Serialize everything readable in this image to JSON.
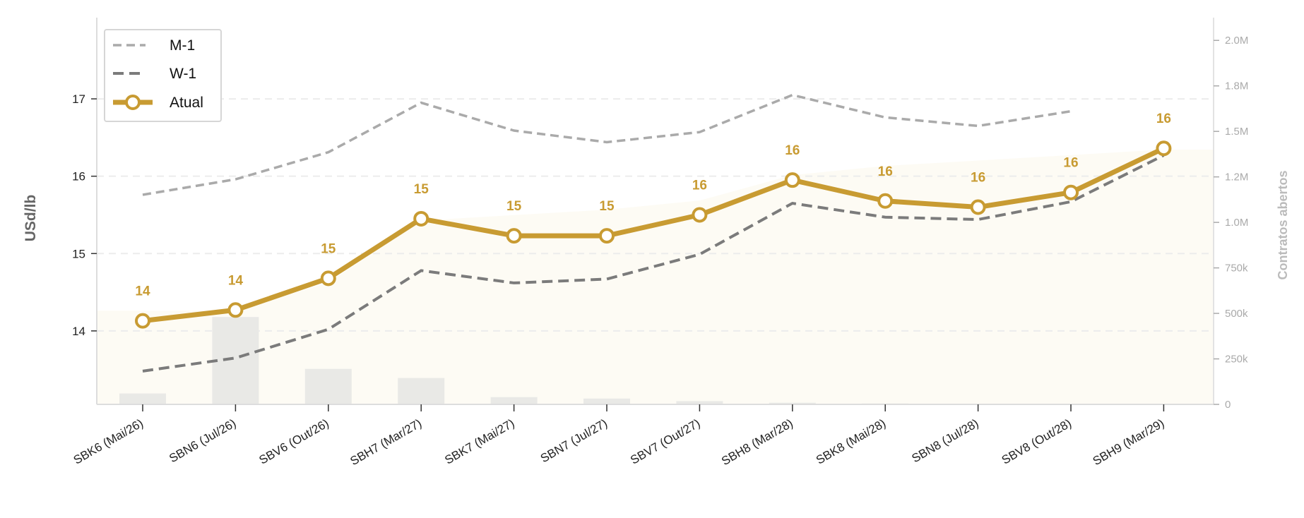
{
  "chart_data": {
    "type": "line",
    "categories": [
      "SBK6 (Mai/26)",
      "SBN6 (Jul/26)",
      "SBV6 (Out/26)",
      "SBH7 (Mar/27)",
      "SBK7 (Mai/27)",
      "SBN7 (Jul/27)",
      "SBV7 (Out/27)",
      "SBH8 (Mar/28)",
      "SBK8 (Mai/28)",
      "SBN8 (Jul/28)",
      "SBV8 (Out/28)",
      "SBH9 (Mar/29)"
    ],
    "series": [
      {
        "name": "M-1",
        "style": "dashed",
        "color": "#aaaaaa",
        "values": [
          15.76,
          15.96,
          16.31,
          16.95,
          16.59,
          16.44,
          16.57,
          17.05,
          16.76,
          16.65,
          16.84,
          null
        ]
      },
      {
        "name": "W-1",
        "style": "dashed",
        "color": "#7b7b7b",
        "values": [
          13.48,
          13.65,
          14.02,
          14.78,
          14.62,
          14.67,
          14.99,
          15.65,
          15.47,
          15.44,
          15.67,
          16.27
        ]
      },
      {
        "name": "Atual",
        "style": "solid-markers",
        "color": "#c89b32",
        "values": [
          14.13,
          14.27,
          14.68,
          15.45,
          15.23,
          15.23,
          15.5,
          15.95,
          15.68,
          15.6,
          15.79,
          16.36
        ],
        "data_labels": [
          "14",
          "14",
          "15",
          "15",
          "15",
          "15",
          "16",
          "16",
          "16",
          "16",
          "16",
          "16"
        ]
      }
    ],
    "open_interest": {
      "name": "Contratos abertos",
      "type": "bar",
      "color": "#e9e9e6",
      "values": [
        60000,
        480000,
        195000,
        145000,
        40000,
        32000,
        18000,
        9000,
        5000,
        3000,
        2000,
        1000
      ]
    },
    "open_interest_area": {
      "color": "#fdfbf4",
      "values": [
        515000,
        515000,
        670000,
        1010000,
        1040000,
        1070000,
        1120000,
        1260000,
        1310000,
        1340000,
        1370000,
        1400000
      ]
    },
    "ylabel": "USd/lb",
    "ylabel_right": "Contratos abertos",
    "ylim": [
      13.05,
      18.05
    ],
    "yticks": [
      14,
      15,
      16,
      17
    ],
    "ylim_right": [
      0,
      2125000
    ],
    "yticks_right": [
      0,
      250000,
      500000,
      750000,
      1000000,
      1250000,
      1500000,
      1750000,
      2000000
    ],
    "ytick_labels_right": [
      "0",
      "250k",
      "500k",
      "750k",
      "1.0M",
      "1.2M",
      "1.5M",
      "1.8M",
      "2.0M"
    ],
    "grid": "horizontal dashed",
    "legend_position": "top-left"
  }
}
